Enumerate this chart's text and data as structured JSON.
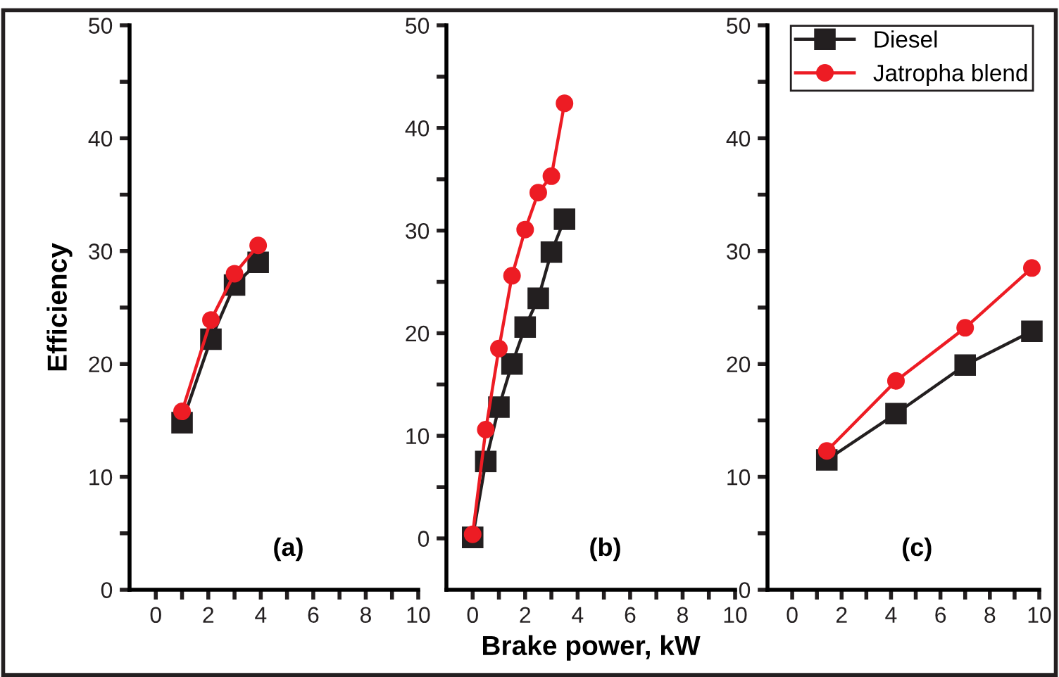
{
  "chart_data": [
    {
      "type": "line",
      "ylabel": "Efficiency",
      "xlim": [
        -1,
        10
      ],
      "ylim": [
        0,
        50
      ],
      "xticks": [
        0,
        {
          "value": 1,
          "label": null
        },
        2,
        {
          "value": 3,
          "label": null
        },
        4,
        {
          "value": 5,
          "label": null
        },
        6,
        {
          "value": 7,
          "label": null
        },
        8,
        {
          "value": 9,
          "label": null
        },
        10
      ],
      "yticks": [
        0,
        {
          "value": 5,
          "label": null
        },
        10,
        {
          "value": 15,
          "label": null
        },
        20,
        {
          "value": 25,
          "label": null
        },
        30,
        {
          "value": 35,
          "label": null
        },
        40,
        {
          "value": 45,
          "label": null
        },
        50
      ],
      "annotations": [
        "(a)"
      ],
      "grid": false,
      "legend": false,
      "series": [
        {
          "color": "#231f20",
          "marker": "square",
          "x": [
            1,
            2.1,
            3,
            3.9
          ],
          "values": [
            14.8,
            22.2,
            27,
            29
          ]
        },
        {
          "color": "#ed1c24",
          "marker": "circle",
          "x": [
            1,
            2.1,
            3,
            3.9
          ],
          "values": [
            15.8,
            23.9,
            28,
            30.5
          ]
        }
      ]
    },
    {
      "type": "line",
      "xlabel": "Brake power, kW",
      "xlim": [
        -1,
        10
      ],
      "ylim": [
        -5,
        50
      ],
      "xticks": [
        0,
        {
          "value": 1,
          "label": null
        },
        2,
        {
          "value": 3,
          "label": null
        },
        4,
        {
          "value": 5,
          "label": null
        },
        6,
        {
          "value": 7,
          "label": null
        },
        8,
        {
          "value": 9,
          "label": null
        },
        10
      ],
      "yticks": [
        0,
        {
          "value": 5,
          "label": null
        },
        10,
        {
          "value": 15,
          "label": null
        },
        20,
        {
          "value": 25,
          "label": null
        },
        30,
        {
          "value": 35,
          "label": null
        },
        40,
        {
          "value": 45,
          "label": null
        },
        50
      ],
      "annotations": [
        "(b)"
      ],
      "grid": false,
      "legend": false,
      "series": [
        {
          "color": "#231f20",
          "marker": "square",
          "x": [
            0,
            0.5,
            1,
            1.5,
            2,
            2.5,
            3,
            3.5
          ],
          "values": [
            0.1,
            7.5,
            12.8,
            17,
            20.6,
            23.4,
            27.9,
            31.1
          ]
        },
        {
          "color": "#ed1c24",
          "marker": "circle",
          "x": [
            0,
            0.5,
            1,
            1.5,
            2,
            2.5,
            3,
            3.5
          ],
          "values": [
            0.4,
            10.6,
            18.5,
            25.6,
            30.1,
            33.7,
            35.3,
            42.4
          ]
        }
      ]
    },
    {
      "type": "line",
      "xlim": [
        -1,
        10
      ],
      "ylim": [
        0,
        50
      ],
      "xticks": [
        0,
        {
          "value": 1,
          "label": null
        },
        2,
        {
          "value": 3,
          "label": null
        },
        4,
        {
          "value": 5,
          "label": null
        },
        6,
        {
          "value": 7,
          "label": null
        },
        8,
        {
          "value": 9,
          "label": null
        },
        10
      ],
      "yticks": [
        0,
        {
          "value": 5,
          "label": null
        },
        10,
        {
          "value": 15,
          "label": null
        },
        20,
        {
          "value": 25,
          "label": null
        },
        30,
        {
          "value": 35,
          "label": null
        },
        40,
        {
          "value": 45,
          "label": null
        },
        50
      ],
      "annotations": [
        "(c)"
      ],
      "grid": false,
      "legend": "top right",
      "series": [
        {
          "name": "Diesel",
          "color": "#231f20",
          "marker": "square",
          "x": [
            1.4,
            4.2,
            7,
            9.7
          ],
          "values": [
            11.5,
            15.6,
            19.9,
            22.9
          ]
        },
        {
          "name": "Jatropha blend",
          "color": "#ed1c24",
          "marker": "circle",
          "x": [
            1.4,
            4.2,
            7,
            9.7
          ],
          "values": [
            12.3,
            18.5,
            23.2,
            28.5
          ]
        }
      ]
    }
  ]
}
